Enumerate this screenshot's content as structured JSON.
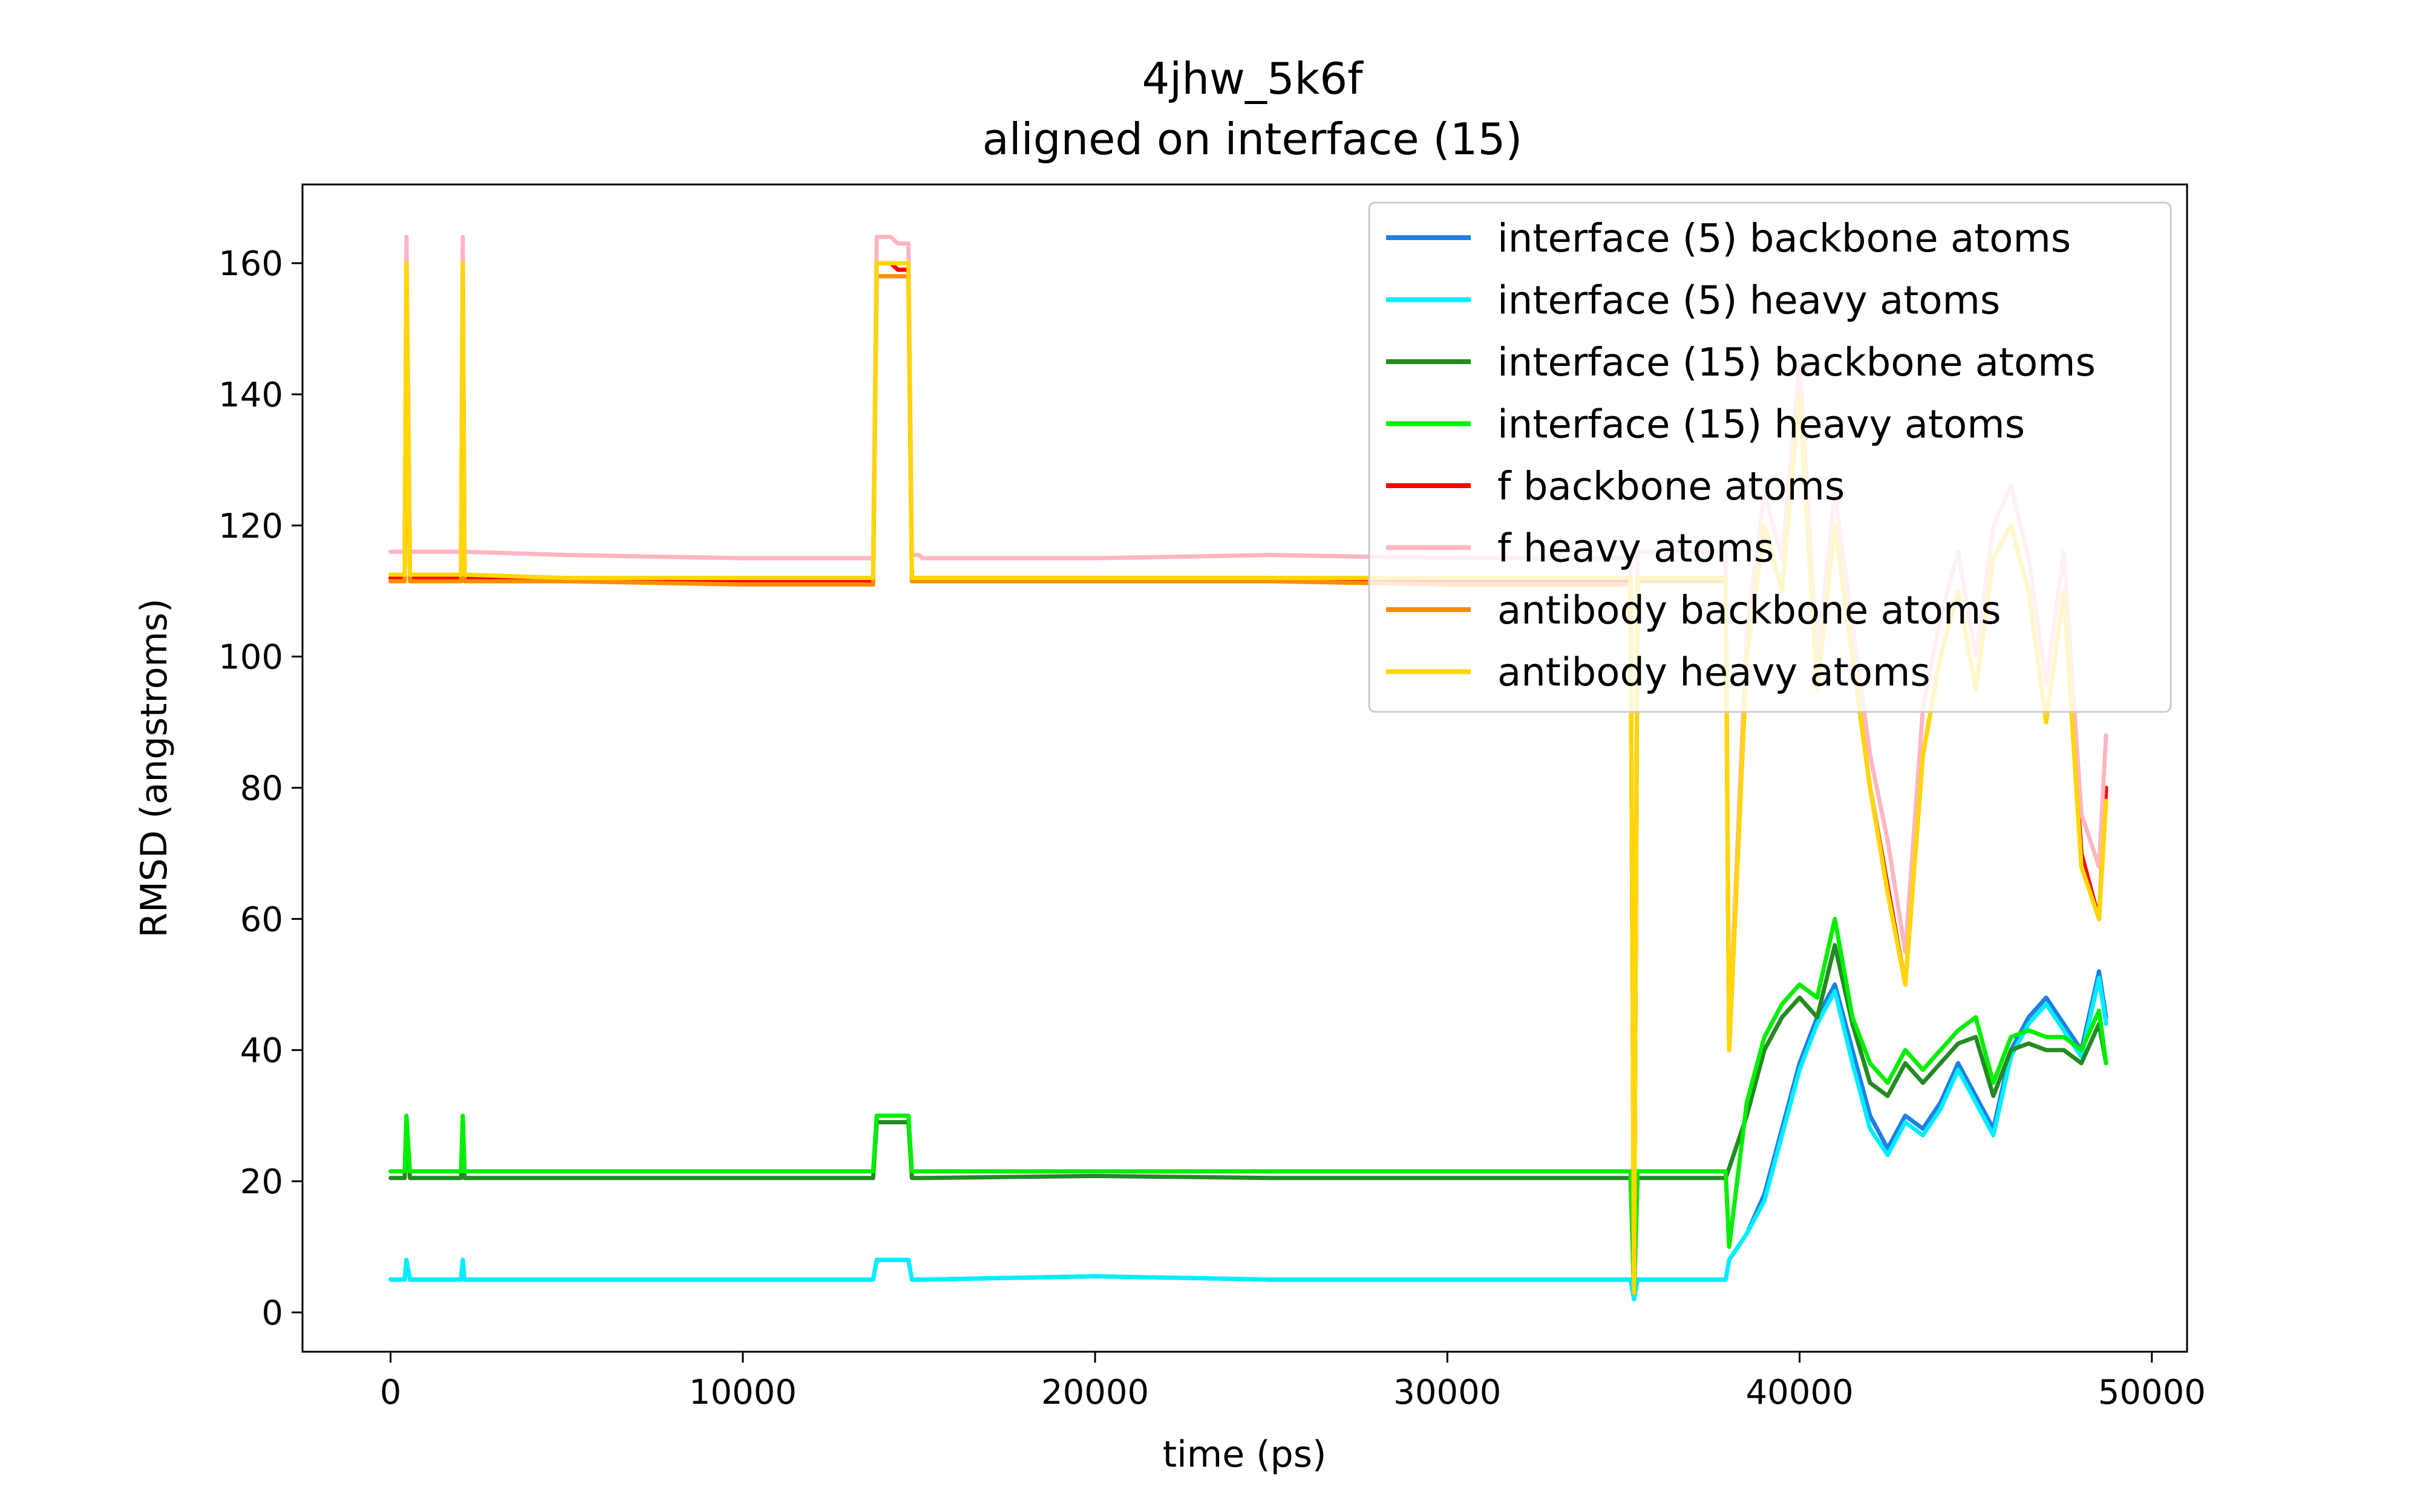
{
  "chart_data": {
    "type": "line",
    "title": "4jhw_5k6f",
    "subtitle": "aligned on interface (15)",
    "xlabel": "time (ps)",
    "ylabel": "RMSD (angstroms)",
    "xlim": [
      -2500,
      51000
    ],
    "ylim": [
      -6,
      172
    ],
    "xticks": [
      0,
      10000,
      20000,
      30000,
      40000,
      50000
    ],
    "yticks": [
      0,
      20,
      40,
      60,
      80,
      100,
      120,
      140,
      160
    ],
    "grid": false,
    "legend_position": "top-right",
    "x": [
      0,
      400,
      450,
      550,
      600,
      2000,
      2050,
      2100,
      5000,
      10000,
      13700,
      13800,
      14200,
      14400,
      14700,
      14800,
      15000,
      15100,
      20000,
      25000,
      30000,
      35200,
      35300,
      35400,
      37800,
      37900,
      38000,
      38500,
      39000,
      39500,
      40000,
      40500,
      41000,
      41500,
      42000,
      42500,
      43000,
      43500,
      44000,
      44500,
      45000,
      45500,
      46000,
      46500,
      47000,
      47500,
      48000,
      48500,
      48700
    ],
    "series": [
      {
        "name": "interface (5) backbone atoms",
        "color": "#1f7fe6",
        "values": [
          5,
          5,
          8,
          5,
          5,
          5,
          8,
          5,
          5,
          5,
          5,
          8,
          8,
          8,
          8,
          5,
          5,
          5,
          5.5,
          5,
          5,
          5,
          2,
          5,
          5,
          5,
          8,
          12,
          18,
          28,
          38,
          45,
          50,
          40,
          30,
          25,
          30,
          28,
          32,
          38,
          33,
          28,
          40,
          45,
          48,
          44,
          40,
          52,
          45
        ]
      },
      {
        "name": "interface (5) heavy atoms",
        "color": "#00eeff",
        "values": [
          5,
          5,
          8,
          5,
          5,
          5,
          8,
          5,
          5,
          5,
          5,
          8,
          8,
          8,
          8,
          5,
          5,
          5,
          5.5,
          5,
          5,
          5,
          2,
          5,
          5,
          5,
          8,
          12,
          17,
          27,
          37,
          44,
          49,
          38,
          28,
          24,
          29,
          27,
          31,
          37,
          32,
          27,
          39,
          44,
          47,
          43,
          39,
          51,
          44
        ]
      },
      {
        "name": "interface (15) backbone atoms",
        "color": "#228b22",
        "values": [
          20.5,
          20.5,
          29,
          20.5,
          20.5,
          20.5,
          29,
          20.5,
          20.5,
          20.5,
          20.5,
          29,
          29,
          29,
          29,
          20.5,
          20.5,
          20.5,
          20.8,
          20.5,
          20.5,
          20.5,
          3,
          20.5,
          20.5,
          20.5,
          22,
          30,
          40,
          45,
          48,
          45,
          56,
          44,
          35,
          33,
          38,
          35,
          38,
          41,
          42,
          33,
          40,
          41,
          40,
          40,
          38,
          44,
          38
        ]
      },
      {
        "name": "interface (15) heavy atoms",
        "color": "#00ee00",
        "values": [
          21.5,
          21.5,
          30,
          21.5,
          21.5,
          21.5,
          30,
          21.5,
          21.5,
          21.5,
          21.5,
          30,
          30,
          30,
          30,
          21.5,
          21.5,
          21.5,
          21.5,
          21.5,
          21.5,
          21.5,
          3,
          21.5,
          21.5,
          21.5,
          10,
          32,
          42,
          47,
          50,
          48,
          60,
          45,
          38,
          35,
          40,
          37,
          40,
          43,
          45,
          35,
          42,
          43,
          42,
          42,
          40,
          46,
          38
        ]
      },
      {
        "name": "f backbone atoms",
        "color": "#ff0000",
        "values": [
          112,
          112,
          160,
          112,
          112,
          112,
          160,
          112,
          112,
          111.5,
          111.5,
          160,
          160,
          159,
          159,
          112,
          112,
          112,
          112,
          112,
          111.5,
          111.5,
          3,
          112,
          112,
          112,
          40,
          100,
          120,
          110,
          140,
          95,
          120,
          100,
          80,
          65,
          50,
          85,
          100,
          110,
          95,
          115,
          120,
          110,
          90,
          110,
          70,
          60,
          80
        ]
      },
      {
        "name": "f heavy atoms",
        "color": "#ffb6c1",
        "values": [
          116,
          116,
          164,
          116,
          116,
          116,
          164,
          116,
          115.5,
          115,
          115,
          164,
          164,
          163,
          163,
          115.5,
          115.5,
          115,
          115,
          115.5,
          115,
          115,
          3,
          116,
          116,
          116,
          42,
          104,
          125,
          115,
          145,
          100,
          125,
          105,
          85,
          72,
          55,
          92,
          106,
          116,
          100,
          120,
          126,
          115,
          96,
          116,
          76,
          68,
          88
        ]
      },
      {
        "name": "antibody backbone atoms",
        "color": "#ff8c00",
        "values": [
          111.5,
          111.5,
          158,
          111.5,
          111.5,
          111.5,
          158,
          111.5,
          111.5,
          111,
          111,
          158,
          158,
          158,
          158,
          111.5,
          111.5,
          111.5,
          111.5,
          111.5,
          111,
          111,
          3,
          111.5,
          111.5,
          111.5,
          40,
          100,
          120,
          110,
          140,
          95,
          120,
          100,
          80,
          64,
          50,
          85,
          100,
          110,
          95,
          115,
          120,
          110,
          90,
          110,
          68,
          60,
          78
        ]
      },
      {
        "name": "antibody heavy atoms",
        "color": "#ffd700",
        "values": [
          112.5,
          112.5,
          160,
          112.5,
          112.5,
          112.5,
          160,
          112.5,
          112,
          112,
          112,
          160,
          160,
          160,
          160,
          112,
          112,
          112,
          112,
          112,
          112,
          112,
          3,
          112,
          112,
          112,
          40,
          100,
          120,
          110,
          140,
          95,
          120,
          100,
          80,
          64,
          50,
          85,
          100,
          110,
          95,
          115,
          120,
          110,
          90,
          110,
          68,
          60,
          78
        ]
      }
    ]
  }
}
